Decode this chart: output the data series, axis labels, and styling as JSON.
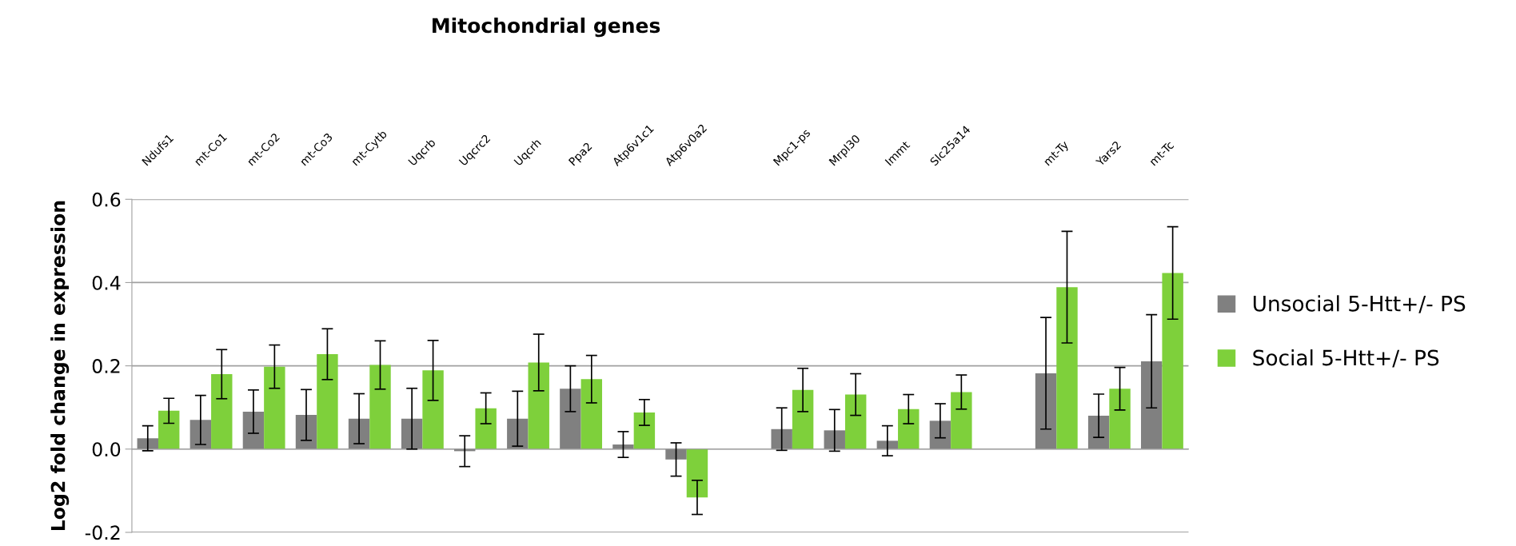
{
  "chart_data": {
    "type": "bar",
    "title": "Mitochondrial genes",
    "ylabel": "Log2 fold change in expression",
    "categories": [
      "Ndufs1",
      "mt-Co1",
      "mt-Co2",
      "mt-Co3",
      "mt-Cytb",
      "Uqcrb",
      "Uqcrc2",
      "Uqcrh",
      "Ppa2",
      "Atp6v1c1",
      "Atp6v0a2",
      null,
      "Mpc1-ps",
      "Mrpl30",
      "Immt",
      "Slc25a14",
      null,
      "mt-Ty",
      "Yars2",
      "mt-Tc"
    ],
    "series": [
      {
        "name": "Unsocial 5-Htt+/- PS",
        "color": "#808080",
        "values": [
          0.026,
          0.07,
          0.09,
          0.082,
          0.073,
          0.073,
          -0.005,
          0.073,
          0.145,
          0.011,
          -0.025,
          null,
          0.048,
          0.045,
          0.02,
          0.068,
          null,
          0.182,
          0.08,
          0.211
        ],
        "errors": [
          0.03,
          0.059,
          0.052,
          0.061,
          0.06,
          0.073,
          0.037,
          0.066,
          0.055,
          0.031,
          0.04,
          null,
          0.051,
          0.05,
          0.036,
          0.041,
          null,
          0.134,
          0.052,
          0.112
        ]
      },
      {
        "name": "Social 5-Htt+/- PS",
        "color": "#7ed03b",
        "values": [
          0.092,
          0.18,
          0.198,
          0.228,
          0.202,
          0.189,
          0.098,
          0.208,
          0.168,
          0.088,
          -0.116,
          null,
          0.142,
          0.131,
          0.096,
          0.137,
          null,
          0.389,
          0.145,
          0.423
        ],
        "errors": [
          0.03,
          0.059,
          0.052,
          0.061,
          0.058,
          0.072,
          0.037,
          0.068,
          0.057,
          0.031,
          0.041,
          null,
          0.052,
          0.05,
          0.035,
          0.041,
          null,
          0.134,
          0.051,
          0.111
        ]
      }
    ],
    "ylim": [
      -0.2,
      0.6
    ],
    "yticks": [
      {
        "value": -0.2,
        "label": "-0.2"
      },
      {
        "value": 0,
        "label": "0.0"
      },
      {
        "value": 0.2,
        "label": "0.2"
      },
      {
        "value": 0.4,
        "label": "0.4"
      },
      {
        "value": 0.6,
        "label": "0.6"
      }
    ],
    "grid": "y",
    "legend": "right"
  }
}
